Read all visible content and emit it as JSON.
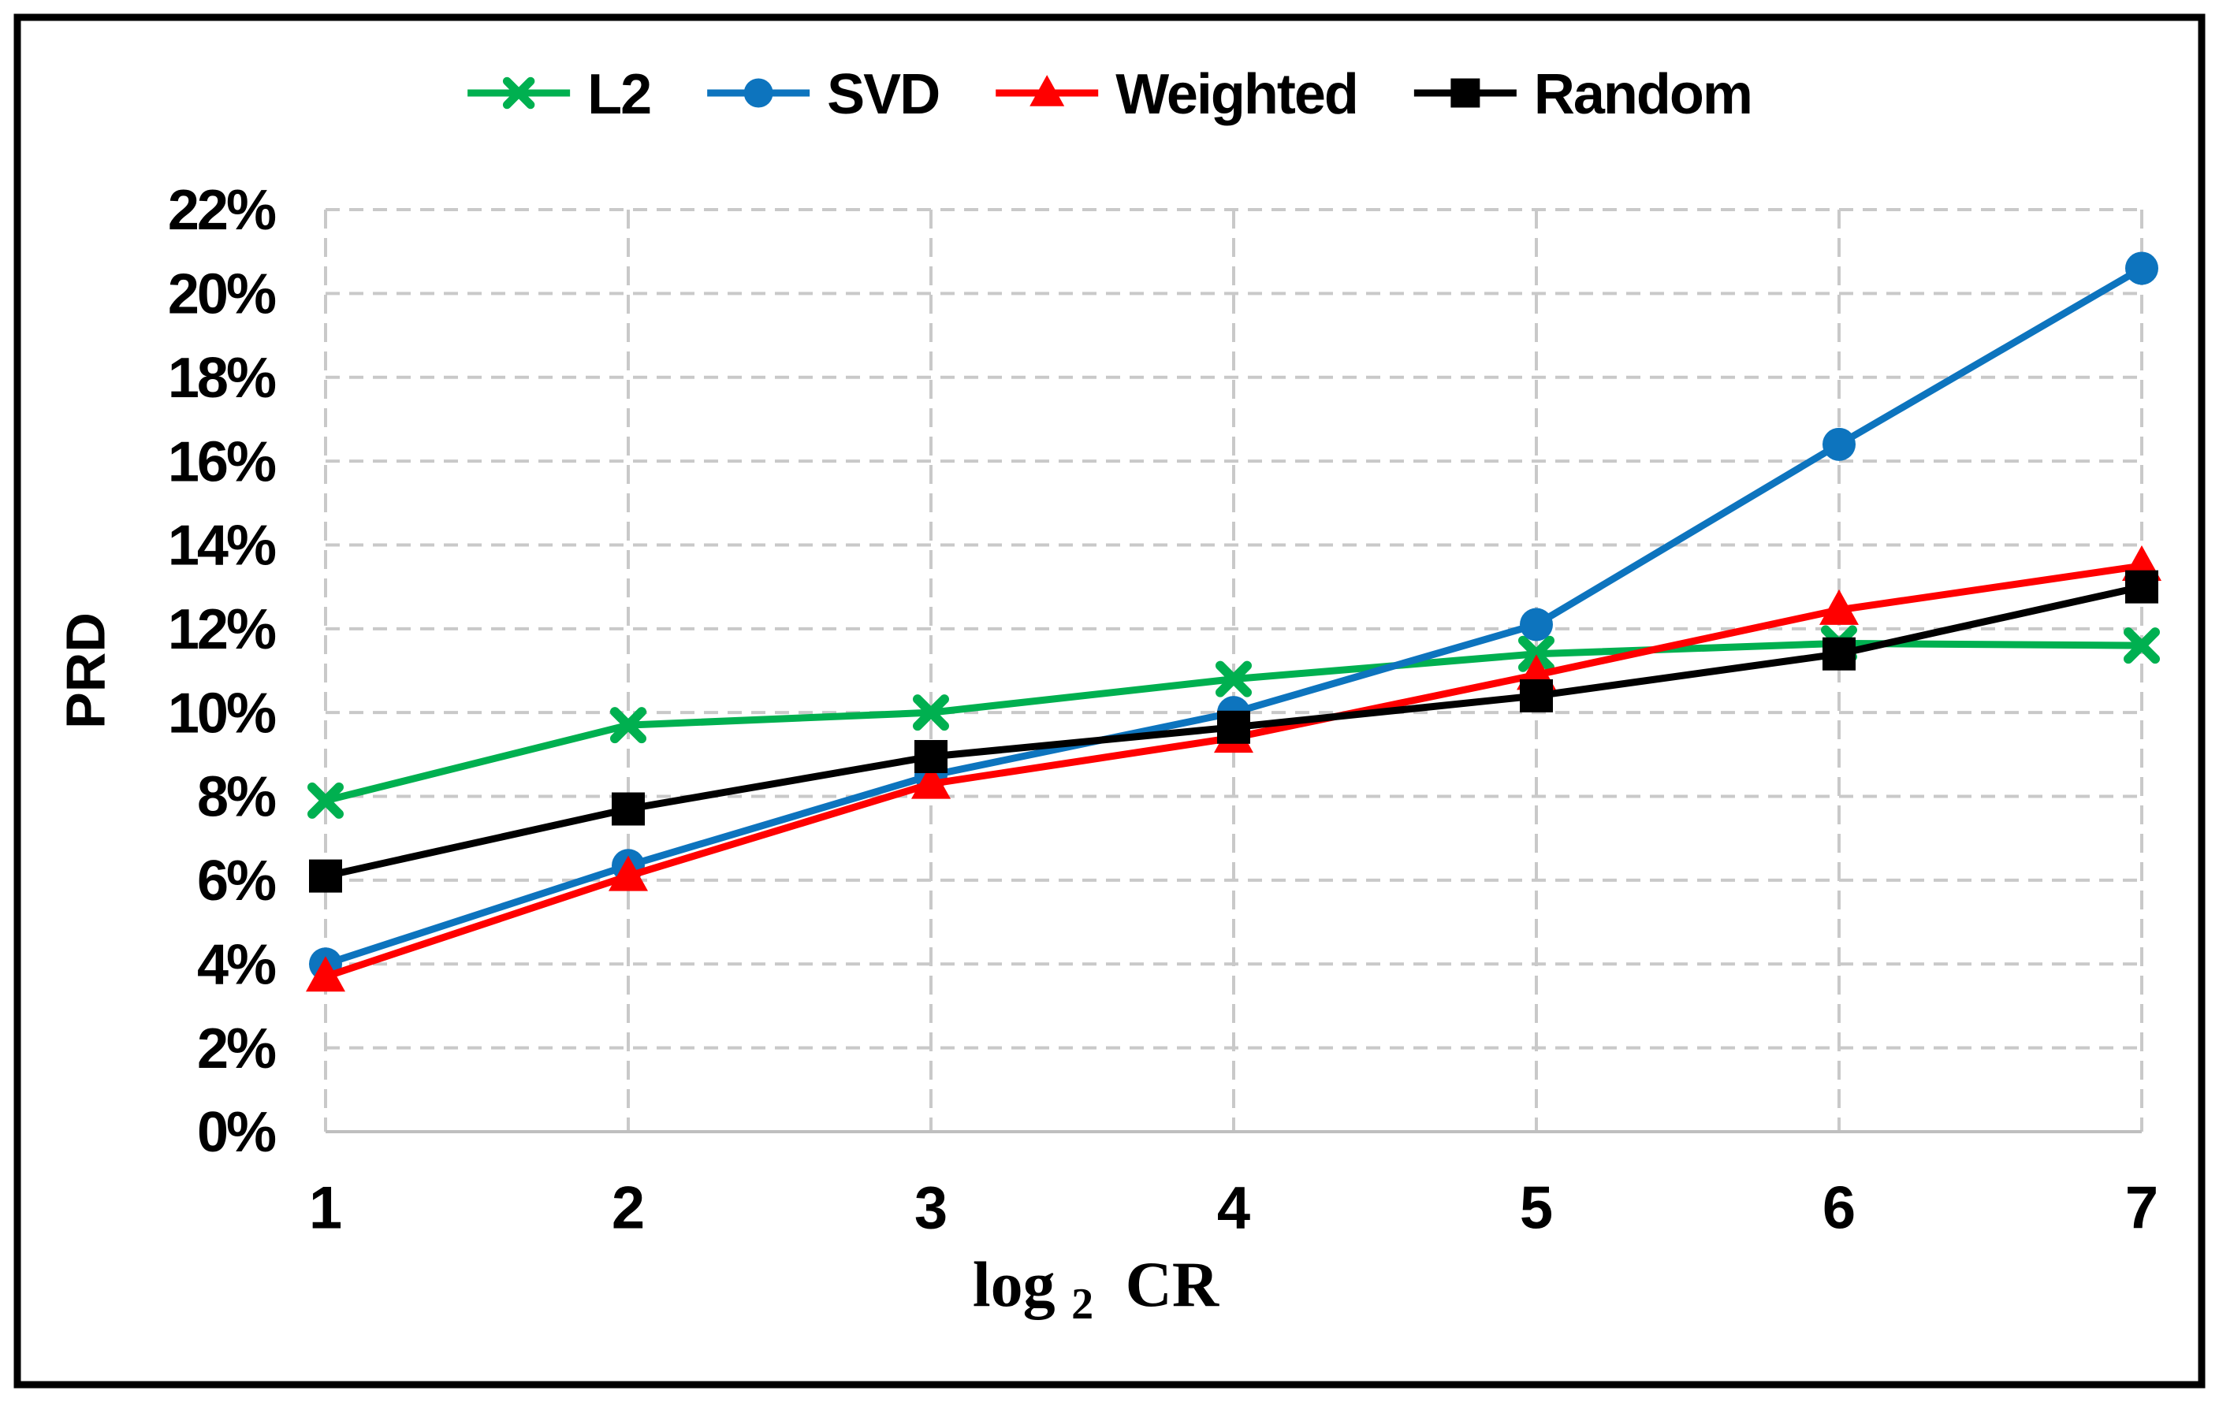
{
  "figure": {
    "background_color": "#FFFFFF",
    "border_color": "#000000",
    "title": ""
  },
  "axes": {
    "y_title": "PRD",
    "x_title_full": "log2 CR",
    "x_title_parts": {
      "base": "log",
      "sub": "2",
      "rest": "CR"
    }
  },
  "chart_data": {
    "type": "line",
    "title": "",
    "xlabel": "log2 CR",
    "ylabel": "PRD",
    "x": [
      1,
      2,
      3,
      4,
      5,
      6,
      7
    ],
    "xticks": [
      "1",
      "2",
      "3",
      "4",
      "5",
      "6",
      "7"
    ],
    "yticks": [
      "0%",
      "2%",
      "4%",
      "6%",
      "8%",
      "10%",
      "12%",
      "14%",
      "16%",
      "18%",
      "20%",
      "22%"
    ],
    "ylim": [
      0,
      22
    ],
    "ytick_step": 2,
    "ytick_format": "percent",
    "grid": "dashed",
    "grid_color": "#C9C9C9",
    "axis_line_color": "#BFBFBF",
    "legend_position": "top-center",
    "series": [
      {
        "name": "L2",
        "color": "#00B050",
        "marker": "x",
        "values": [
          7.9,
          9.7,
          10.0,
          10.8,
          11.4,
          11.65,
          11.6
        ]
      },
      {
        "name": "SVD",
        "color": "#0D74BE",
        "marker": "circle",
        "values": [
          4.0,
          6.35,
          8.5,
          10.0,
          12.1,
          16.4,
          20.6
        ]
      },
      {
        "name": "Weighted",
        "color": "#FF0000",
        "marker": "triangle",
        "values": [
          3.7,
          6.1,
          8.3,
          9.4,
          10.9,
          12.45,
          13.5
        ]
      },
      {
        "name": "Random",
        "color": "#000000",
        "marker": "square",
        "values": [
          6.1,
          7.7,
          8.95,
          9.65,
          10.4,
          11.4,
          13.0
        ]
      }
    ]
  }
}
